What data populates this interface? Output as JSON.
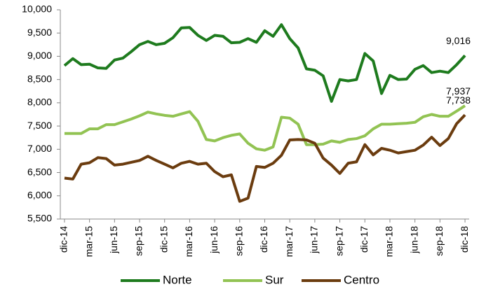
{
  "chart_data": {
    "type": "line",
    "categories": [
      "dic-14",
      null,
      null,
      "mar-15",
      null,
      null,
      "jun-15",
      null,
      null,
      "sep-15",
      null,
      null,
      "dic-15",
      null,
      null,
      "mar-16",
      null,
      null,
      "jun-16",
      null,
      null,
      "sep-16",
      null,
      null,
      "dic-16",
      null,
      null,
      "mar-17",
      null,
      null,
      "jun-17",
      null,
      null,
      "sep-17",
      null,
      null,
      "dic-17",
      null,
      null,
      "mar-18",
      null,
      null,
      "jun-18",
      null,
      null,
      "sep-18",
      null,
      null,
      "dic-18"
    ],
    "series": [
      {
        "name": "Norte",
        "color": "#1e7b1e",
        "values": [
          8800,
          8950,
          8820,
          8830,
          8750,
          8740,
          8920,
          8960,
          9100,
          9250,
          9320,
          9250,
          9280,
          9400,
          9610,
          9620,
          9450,
          9340,
          9450,
          9430,
          9290,
          9300,
          9380,
          9300,
          9550,
          9430,
          9680,
          9380,
          9180,
          8730,
          8700,
          8580,
          8030,
          8500,
          8470,
          8500,
          9060,
          8900,
          8200,
          8590,
          8500,
          8510,
          8720,
          8800,
          8650,
          8680,
          8650,
          8820,
          9016
        ],
        "value_labels": [
          null,
          null,
          null,
          null,
          null,
          null,
          null,
          null,
          null,
          null,
          null,
          null,
          null,
          null,
          null,
          null,
          null,
          null,
          null,
          null,
          null,
          null,
          null,
          null,
          null,
          null,
          null,
          null,
          null,
          null,
          null,
          null,
          null,
          null,
          null,
          null,
          null,
          null,
          null,
          null,
          null,
          null,
          null,
          null,
          null,
          null,
          null,
          null,
          "9,016"
        ]
      },
      {
        "name": "Sur",
        "color": "#92c353",
        "values": [
          7340,
          7340,
          7340,
          7440,
          7440,
          7530,
          7530,
          7590,
          7650,
          7720,
          7800,
          7760,
          7730,
          7710,
          7760,
          7810,
          7600,
          7210,
          7180,
          7250,
          7300,
          7330,
          7130,
          7010,
          6980,
          7050,
          7690,
          7670,
          7540,
          7100,
          7100,
          7110,
          7180,
          7150,
          7210,
          7230,
          7290,
          7440,
          7540,
          7540,
          7550,
          7560,
          7580,
          7700,
          7750,
          7710,
          7710,
          7820,
          7937
        ],
        "value_labels": [
          null,
          null,
          null,
          null,
          null,
          null,
          null,
          null,
          null,
          null,
          null,
          null,
          null,
          null,
          null,
          null,
          null,
          null,
          null,
          null,
          null,
          null,
          null,
          null,
          null,
          null,
          null,
          null,
          null,
          null,
          null,
          null,
          null,
          null,
          null,
          null,
          null,
          null,
          null,
          null,
          null,
          null,
          null,
          null,
          null,
          null,
          null,
          null,
          "7,937"
        ]
      },
      {
        "name": "Centro",
        "color": "#6b3c0f",
        "values": [
          6380,
          6360,
          6680,
          6710,
          6820,
          6800,
          6660,
          6680,
          6720,
          6760,
          6850,
          6760,
          6680,
          6600,
          6700,
          6740,
          6680,
          6700,
          6520,
          6410,
          6450,
          5880,
          5950,
          6630,
          6610,
          6700,
          6870,
          7200,
          7210,
          7200,
          7130,
          6810,
          6660,
          6480,
          6700,
          6730,
          7100,
          6880,
          7020,
          6980,
          6920,
          6950,
          6980,
          7090,
          7260,
          7080,
          7230,
          7550,
          7738
        ],
        "value_labels": [
          null,
          null,
          null,
          null,
          null,
          null,
          null,
          null,
          null,
          null,
          null,
          null,
          null,
          null,
          null,
          null,
          null,
          null,
          null,
          null,
          null,
          null,
          null,
          null,
          null,
          null,
          null,
          null,
          null,
          null,
          null,
          null,
          null,
          null,
          null,
          null,
          null,
          null,
          null,
          null,
          null,
          null,
          null,
          null,
          null,
          null,
          null,
          null,
          "7,738"
        ]
      }
    ],
    "ylim": [
      5500,
      10000
    ],
    "yticks": [
      {
        "value": 5500,
        "label": "5,500"
      },
      {
        "value": 6000,
        "label": "6,000"
      },
      {
        "value": 6500,
        "label": "6,500"
      },
      {
        "value": 7000,
        "label": "7,000"
      },
      {
        "value": 7500,
        "label": "7,500"
      },
      {
        "value": 8000,
        "label": "8,000"
      },
      {
        "value": 8500,
        "label": "8,500"
      },
      {
        "value": 9000,
        "label": "9,000"
      },
      {
        "value": 9500,
        "label": "9,500"
      },
      {
        "value": 10000,
        "label": "10,000"
      }
    ],
    "grid": false,
    "legend": "bottom"
  }
}
